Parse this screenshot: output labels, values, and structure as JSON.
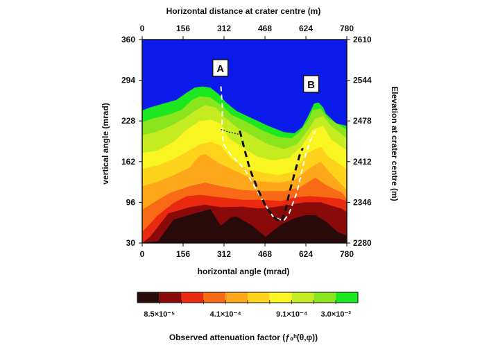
{
  "chart_data": {
    "type": "heatmap",
    "title": "",
    "xlabel": "horizontal angle (mrad)",
    "ylabel": "vertical angle (mrad)",
    "x2label": "Horizontal distance at crater centre (m)",
    "y2label": "Elevation at crater centre (m)",
    "xlim": [
      0,
      780
    ],
    "ylim": [
      30,
      360
    ],
    "x2lim": [
      0,
      780
    ],
    "y2lim": [
      2280,
      2610
    ],
    "xticks": [
      "0",
      "156",
      "312",
      "468",
      "624",
      "780"
    ],
    "yticks": [
      "30",
      "96",
      "162",
      "228",
      "294",
      "360"
    ],
    "x2ticks": [
      "0",
      "156",
      "312",
      "468",
      "624",
      "780"
    ],
    "y2ticks": [
      "2280",
      "2346",
      "2412",
      "2478",
      "2544",
      "2610"
    ],
    "background_color": "#0a1aeb",
    "levels": [
      {
        "color": "#280a0a",
        "boundary": [
          [
            0,
            30
          ],
          [
            60,
            33
          ],
          [
            120,
            68
          ],
          [
            200,
            78
          ],
          [
            260,
            85
          ],
          [
            300,
            58
          ],
          [
            340,
            72
          ],
          [
            360,
            73
          ],
          [
            420,
            58
          ],
          [
            470,
            40
          ],
          [
            530,
            60
          ],
          [
            580,
            70
          ],
          [
            620,
            75
          ],
          [
            660,
            75
          ],
          [
            700,
            65
          ],
          [
            745,
            48
          ],
          [
            780,
            42
          ],
          [
            780,
            30
          ]
        ]
      },
      {
        "color": "#8a0a0a",
        "boundary": [
          [
            0,
            30
          ],
          [
            30,
            40
          ],
          [
            100,
            78
          ],
          [
            180,
            88
          ],
          [
            240,
            92
          ],
          [
            300,
            88
          ],
          [
            380,
            89
          ],
          [
            440,
            86
          ],
          [
            500,
            88
          ],
          [
            560,
            92
          ],
          [
            620,
            96
          ],
          [
            680,
            96
          ],
          [
            740,
            88
          ],
          [
            760,
            86
          ],
          [
            780,
            80
          ],
          [
            780,
            30
          ]
        ]
      },
      {
        "color": "#ea2a10",
        "boundary": [
          [
            0,
            30
          ],
          [
            0,
            48
          ],
          [
            60,
            75
          ],
          [
            120,
            95
          ],
          [
            170,
            106
          ],
          [
            220,
            108
          ],
          [
            300,
            104
          ],
          [
            380,
            100
          ],
          [
            460,
            100
          ],
          [
            530,
            98
          ],
          [
            580,
            104
          ],
          [
            640,
            106
          ],
          [
            700,
            104
          ],
          [
            750,
            102
          ],
          [
            780,
            98
          ],
          [
            780,
            30
          ]
        ]
      },
      {
        "color": "#f86a16",
        "boundary": [
          [
            0,
            30
          ],
          [
            0,
            84
          ],
          [
            60,
            100
          ],
          [
            110,
            112
          ],
          [
            180,
            122
          ],
          [
            240,
            128
          ],
          [
            300,
            122
          ],
          [
            380,
            116
          ],
          [
            460,
            114
          ],
          [
            540,
            114
          ],
          [
            600,
            120
          ],
          [
            660,
            136
          ],
          [
            700,
            124
          ],
          [
            760,
            112
          ],
          [
            780,
            102
          ],
          [
            780,
            30
          ]
        ]
      },
      {
        "color": "#ffa71a",
        "boundary": [
          [
            0,
            30
          ],
          [
            0,
            122
          ],
          [
            50,
            128
          ],
          [
            110,
            138
          ],
          [
            180,
            152
          ],
          [
            220,
            172
          ],
          [
            240,
            174
          ],
          [
            290,
            160
          ],
          [
            360,
            146
          ],
          [
            440,
            130
          ],
          [
            520,
            128
          ],
          [
            580,
            132
          ],
          [
            640,
            152
          ],
          [
            680,
            162
          ],
          [
            720,
            142
          ],
          [
            780,
            116
          ],
          [
            780,
            30
          ]
        ]
      },
      {
        "color": "#ffd21c",
        "boundary": [
          [
            0,
            30
          ],
          [
            0,
            150
          ],
          [
            60,
            156
          ],
          [
            120,
            166
          ],
          [
            180,
            180
          ],
          [
            220,
            190
          ],
          [
            260,
            194
          ],
          [
            300,
            188
          ],
          [
            340,
            166
          ],
          [
            400,
            150
          ],
          [
            460,
            144
          ],
          [
            520,
            140
          ],
          [
            580,
            146
          ],
          [
            630,
            176
          ],
          [
            680,
            186
          ],
          [
            710,
            170
          ],
          [
            780,
            150
          ],
          [
            780,
            30
          ]
        ]
      },
      {
        "color": "#f8f520",
        "boundary": [
          [
            0,
            30
          ],
          [
            0,
            176
          ],
          [
            60,
            180
          ],
          [
            120,
            194
          ],
          [
            170,
            214
          ],
          [
            220,
            228
          ],
          [
            260,
            230
          ],
          [
            300,
            224
          ],
          [
            330,
            200
          ],
          [
            380,
            186
          ],
          [
            440,
            170
          ],
          [
            500,
            164
          ],
          [
            560,
            168
          ],
          [
            610,
            188
          ],
          [
            650,
            214
          ],
          [
            690,
            220
          ],
          [
            720,
            198
          ],
          [
            780,
            180
          ],
          [
            780,
            30
          ]
        ]
      },
      {
        "color": "#c4ec20",
        "boundary": [
          [
            0,
            30
          ],
          [
            0,
            205
          ],
          [
            50,
            210
          ],
          [
            110,
            220
          ],
          [
            160,
            232
          ],
          [
            200,
            244
          ],
          [
            240,
            254
          ],
          [
            280,
            250
          ],
          [
            310,
            236
          ],
          [
            360,
            218
          ],
          [
            420,
            204
          ],
          [
            480,
            190
          ],
          [
            540,
            182
          ],
          [
            590,
            190
          ],
          [
            630,
            212
          ],
          [
            660,
            232
          ],
          [
            690,
            236
          ],
          [
            720,
            220
          ],
          [
            780,
            200
          ],
          [
            780,
            30
          ]
        ]
      },
      {
        "color": "#8ae41e",
        "boundary": [
          [
            0,
            30
          ],
          [
            0,
            226
          ],
          [
            40,
            232
          ],
          [
            100,
            238
          ],
          [
            150,
            246
          ],
          [
            190,
            262
          ],
          [
            220,
            268
          ],
          [
            260,
            266
          ],
          [
            300,
            254
          ],
          [
            340,
            238
          ],
          [
            400,
            226
          ],
          [
            460,
            212
          ],
          [
            520,
            202
          ],
          [
            570,
            200
          ],
          [
            600,
            210
          ],
          [
            630,
            228
          ],
          [
            650,
            246
          ],
          [
            680,
            248
          ],
          [
            710,
            232
          ],
          [
            780,
            214
          ],
          [
            780,
            30
          ]
        ]
      },
      {
        "color": "#1ce820",
        "boundary": [
          [
            0,
            30
          ],
          [
            0,
            245
          ],
          [
            30,
            250
          ],
          [
            80,
            256
          ],
          [
            130,
            262
          ],
          [
            170,
            274
          ],
          [
            200,
            282
          ],
          [
            230,
            284
          ],
          [
            260,
            282
          ],
          [
            290,
            272
          ],
          [
            320,
            258
          ],
          [
            360,
            244
          ],
          [
            420,
            232
          ],
          [
            480,
            220
          ],
          [
            540,
            210
          ],
          [
            580,
            208
          ],
          [
            610,
            218
          ],
          [
            635,
            238
          ],
          [
            655,
            256
          ],
          [
            672,
            258
          ],
          [
            690,
            250
          ],
          [
            700,
            240
          ],
          [
            740,
            224
          ],
          [
            780,
            220
          ],
          [
            780,
            30
          ]
        ]
      }
    ],
    "overlays": [
      {
        "label": "A",
        "x": 298,
        "y": 314
      },
      {
        "label": "B",
        "x": 644,
        "y": 288
      }
    ],
    "colorbar": {
      "colors": [
        "#280a0a",
        "#8a0a0a",
        "#ea2a10",
        "#f86a16",
        "#ffa71a",
        "#ffd21c",
        "#f8f520",
        "#c4ec20",
        "#8ae41e",
        "#1ce820"
      ],
      "tick_labels": [
        "8.5×10⁻⁵",
        "4.1×10⁻⁴",
        "9.1×10⁻⁴",
        "3.0×10⁻³"
      ],
      "tick_at_boundary": [
        1,
        4,
        7,
        9
      ],
      "caption": "Observed attenuation factor (ƒ₀ʰ(θ,φ))"
    },
    "dashed_paths": [
      {
        "style": "white",
        "points": [
          [
            300,
            284
          ],
          [
            306,
            248
          ],
          [
            304,
            214
          ],
          [
            310,
            190
          ],
          [
            340,
            172
          ],
          [
            390,
            150
          ],
          [
            460,
            98
          ],
          [
            500,
            72
          ],
          [
            540,
            66
          ],
          [
            560,
            78
          ],
          [
            590,
            112
          ],
          [
            620,
            168
          ],
          [
            640,
            196
          ],
          [
            660,
            212
          ]
        ]
      },
      {
        "style": "black",
        "points": [
          [
            372,
            212
          ],
          [
            390,
            182
          ],
          [
            410,
            150
          ],
          [
            440,
            118
          ],
          [
            470,
            90
          ],
          [
            500,
            72
          ],
          [
            530,
            64
          ],
          [
            548,
            86
          ],
          [
            560,
            110
          ],
          [
            580,
            142
          ],
          [
            600,
            172
          ],
          [
            612,
            184
          ]
        ]
      },
      {
        "style": "dotted-black",
        "points": [
          [
            300,
            214
          ],
          [
            330,
            210
          ],
          [
            372,
            206
          ]
        ]
      }
    ]
  }
}
